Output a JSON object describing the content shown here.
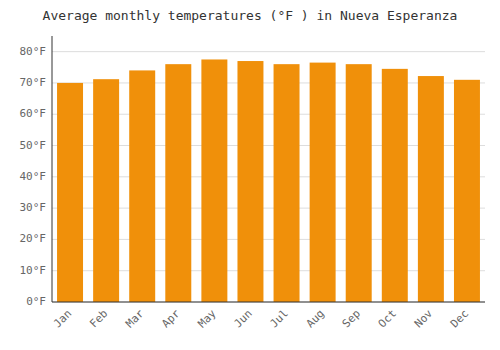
{
  "chart_data": {
    "type": "bar",
    "title": "Average monthly temperatures (°F ) in Nueva Esperanza",
    "categories": [
      "Jan",
      "Feb",
      "Mar",
      "Apr",
      "May",
      "Jun",
      "Jul",
      "Aug",
      "Sep",
      "Oct",
      "Nov",
      "Dec"
    ],
    "values": [
      70.0,
      71.2,
      74.0,
      76.0,
      77.5,
      77.0,
      76.0,
      76.5,
      76.0,
      74.5,
      72.2,
      71.0
    ],
    "color": "#F0900A",
    "ylim": [
      0,
      85
    ],
    "yticks": [
      {
        "value": 0,
        "label": "0°F"
      },
      {
        "value": 10,
        "label": "10°F"
      },
      {
        "value": 20,
        "label": "20°F"
      },
      {
        "value": 30,
        "label": "30°F"
      },
      {
        "value": 40,
        "label": "40°F"
      },
      {
        "value": 50,
        "label": "50°F"
      },
      {
        "value": 60,
        "label": "60°F"
      },
      {
        "value": 70,
        "label": "70°F"
      },
      {
        "value": 80,
        "label": "80°F"
      }
    ],
    "grid": true
  }
}
